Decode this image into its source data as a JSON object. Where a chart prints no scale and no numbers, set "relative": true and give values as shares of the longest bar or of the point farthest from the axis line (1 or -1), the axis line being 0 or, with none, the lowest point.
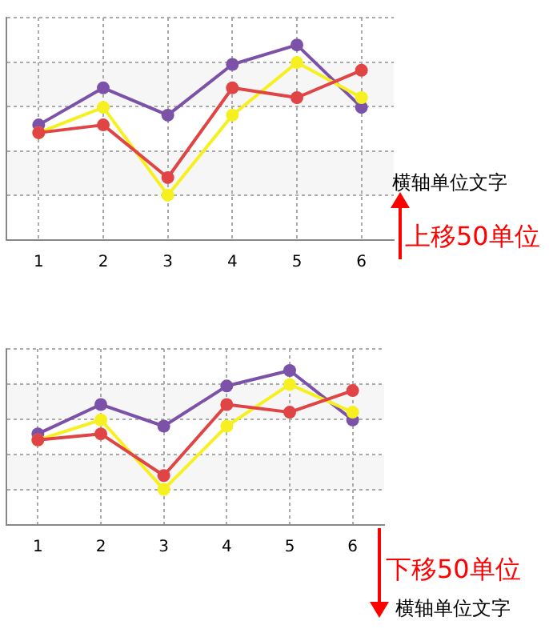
{
  "chart_data": [
    {
      "type": "line",
      "categories": [
        "1",
        "2",
        "3",
        "4",
        "5",
        "6"
      ],
      "relative": true,
      "grid": true,
      "marker": "circle",
      "legend": false,
      "series": [
        {
          "color": "#7b52a8",
          "values": [
            0.59,
            0.78,
            0.64,
            0.9,
            1,
            0.68
          ]
        },
        {
          "color": "#f7f020",
          "values": [
            0.55,
            0.68,
            0.23,
            0.64,
            0.91,
            0.73
          ]
        },
        {
          "color": "#e04444",
          "values": [
            0.55,
            0.59,
            0.32,
            0.78,
            0.73,
            0.87
          ]
        }
      ],
      "annotations": [
        "横轴单位文字",
        "上移50单位"
      ]
    },
    {
      "type": "line",
      "categories": [
        "1",
        "2",
        "3",
        "4",
        "5",
        "6"
      ],
      "relative": true,
      "grid": true,
      "marker": "circle",
      "legend": false,
      "series": [
        {
          "color": "#7b52a8",
          "values": [
            0.59,
            0.78,
            0.64,
            0.9,
            1,
            0.68
          ]
        },
        {
          "color": "#f7f020",
          "values": [
            0.55,
            0.68,
            0.23,
            0.64,
            0.91,
            0.73
          ]
        },
        {
          "color": "#e04444",
          "values": [
            0.55,
            0.59,
            0.32,
            0.78,
            0.73,
            0.87
          ]
        }
      ],
      "annotations": [
        "横轴单位文字",
        "下移50单位"
      ]
    }
  ]
}
